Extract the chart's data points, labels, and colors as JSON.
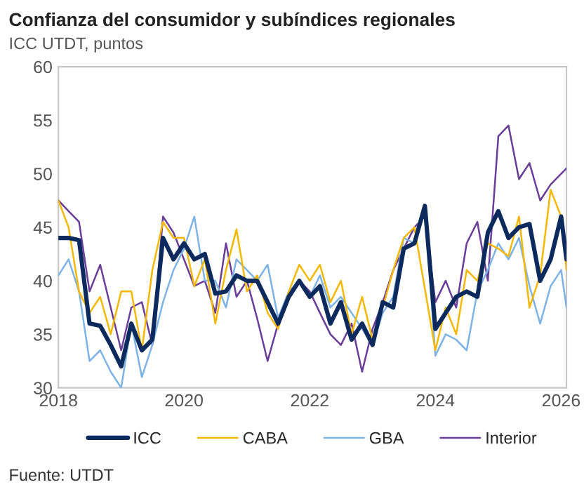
{
  "chart_data": {
    "type": "line",
    "title": "Confianza del consumidor y subíndices regionales",
    "subtitle": "ICC UTDT, puntos",
    "annotations": [
      "Fuente: UTDT"
    ],
    "x": [
      "2018-01",
      "2018-03",
      "2018-05",
      "2018-07",
      "2018-09",
      "2018-11",
      "2019-01",
      "2019-03",
      "2019-05",
      "2019-07",
      "2019-09",
      "2019-11",
      "2020-01",
      "2020-03",
      "2020-05",
      "2020-07",
      "2020-09",
      "2020-11",
      "2021-01",
      "2021-03",
      "2021-05",
      "2021-07",
      "2021-09",
      "2021-11",
      "2022-01",
      "2022-03",
      "2022-05",
      "2022-07",
      "2022-09",
      "2022-11",
      "2023-01",
      "2023-03",
      "2023-05",
      "2023-07",
      "2023-09",
      "2023-11",
      "2024-01",
      "2024-03",
      "2024-05",
      "2024-07",
      "2024-09",
      "2024-11",
      "2025-01",
      "2025-03",
      "2025-05",
      "2025-07",
      "2025-09",
      "2025-11",
      "2026-01",
      "2026-02"
    ],
    "series": [
      {
        "name": "ICC",
        "color": "#0d2a5e",
        "values": [
          44,
          44,
          43.8,
          36,
          35.8,
          34,
          32,
          36,
          33.5,
          34.5,
          44,
          42,
          43.5,
          42,
          42.5,
          38.8,
          39,
          40.5,
          40,
          40,
          38,
          36,
          38.5,
          40,
          38.5,
          39.5,
          36,
          38,
          34.5,
          36,
          34,
          38,
          37.5,
          43,
          43.5,
          47,
          35.5,
          37,
          38.5,
          39,
          38.5,
          44.5,
          46.5,
          44,
          45,
          45.3,
          40,
          42,
          46,
          42
        ]
      },
      {
        "name": "CABA",
        "color": "#f5b800",
        "values": [
          47.5,
          45,
          39,
          37,
          38.5,
          35,
          39,
          39,
          33.5,
          41,
          45.5,
          44,
          44,
          39.5,
          42,
          36,
          41,
          44.8,
          39,
          40.5,
          37,
          35.5,
          39,
          41.5,
          40,
          41.5,
          38,
          40,
          35,
          38.5,
          34.5,
          37.5,
          41,
          44,
          45,
          null,
          33.5,
          37.5,
          35,
          41,
          40,
          43.5,
          43,
          42.3,
          46,
          37.5,
          40.5,
          48.5,
          46,
          41
        ]
      },
      {
        "name": "GBA",
        "color": "#7eb3e8",
        "values": [
          40.5,
          42,
          39,
          32.5,
          33.5,
          31.5,
          30,
          36,
          31,
          34,
          38,
          41,
          43,
          46,
          40,
          40,
          37.5,
          42,
          41,
          40,
          41.5,
          36.5,
          39,
          40,
          38.5,
          40.5,
          37.5,
          38.5,
          37,
          35.5,
          34,
          37,
          38.5,
          44,
          43.5,
          47,
          33,
          35,
          34.5,
          33.5,
          39,
          41,
          43.5,
          42,
          44,
          39.5,
          36,
          39.5,
          41,
          37.5
        ]
      },
      {
        "name": "Interior",
        "color": "#6a3d9a",
        "values": [
          47.5,
          46.5,
          45.5,
          39,
          41.5,
          37.5,
          33.5,
          37.5,
          38,
          34,
          46,
          44.5,
          42,
          39.5,
          40,
          37,
          43.5,
          38.5,
          40,
          36.5,
          32.5,
          36,
          38.5,
          40,
          39,
          37,
          35,
          34,
          36,
          31.5,
          35.5,
          38,
          41,
          43,
          45,
          46,
          38,
          40,
          37.5,
          43.5,
          45.5,
          40,
          53.5,
          54.5,
          49.5,
          51,
          47.5,
          49,
          50,
          50.5
        ]
      }
    ],
    "xlim": [
      "2018-01",
      "2026-02"
    ],
    "xticks": [
      {
        "value": "2018-01",
        "label": "2018"
      },
      {
        "value": "2020-01",
        "label": "2020"
      },
      {
        "value": "2022-01",
        "label": "2022"
      },
      {
        "value": "2024-01",
        "label": "2024"
      },
      {
        "value": "2026-01",
        "label": "2026"
      }
    ],
    "ylim": [
      30,
      60
    ],
    "yticks": [
      30,
      35,
      40,
      45,
      50,
      55,
      60
    ],
    "grid": false,
    "legend": "bottom",
    "marker": "none",
    "line_style": "solid"
  }
}
